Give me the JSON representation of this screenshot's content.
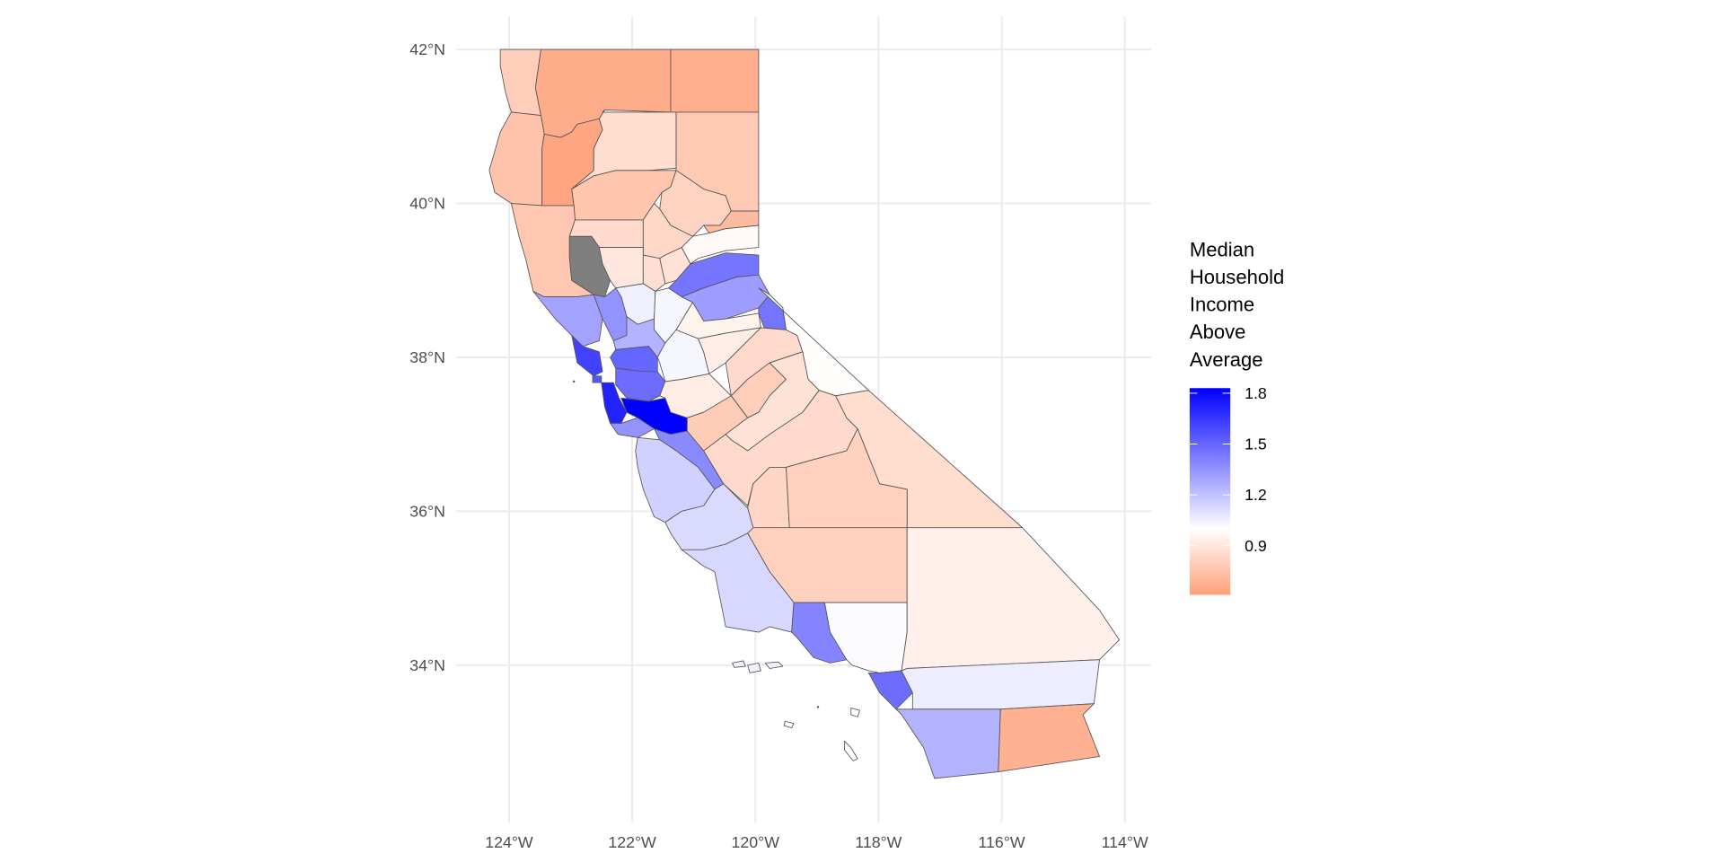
{
  "chart_data": {
    "type": "choropleth",
    "region": "California counties",
    "x_axis": {
      "ticks": [
        "124°W",
        "122°W",
        "120°W",
        "118°W",
        "116°W",
        "114°W"
      ],
      "range": [
        -124.8,
        -113.6
      ]
    },
    "y_axis": {
      "ticks": [
        "34°N",
        "36°N",
        "38°N",
        "40°N",
        "42°N"
      ],
      "range": [
        32.3,
        42.4
      ]
    },
    "grid": true,
    "legend": {
      "title_lines": [
        "Median",
        "Household",
        "Income",
        "Above",
        "Average"
      ],
      "ticks": [
        "1.8",
        "1.5",
        "1.2",
        "0.9"
      ],
      "tick_values": [
        1.8,
        1.5,
        1.2,
        0.9
      ],
      "range": [
        0.61,
        1.83
      ],
      "midpoint": 1.0,
      "low_color": "#FFA07A",
      "mid_color": "#FFFFFF",
      "high_color": "#0000FF",
      "na_color": "#7F7F7F",
      "placement": "right"
    },
    "values": [
      0.8,
      0.66,
      0.67,
      0.75,
      0.63,
      0.86,
      0.78,
      0.76,
      0.82,
      0.72,
      0.77,
      0.85,
      null,
      0.84,
      0.88,
      0.98,
      0.9,
      0.87,
      1.45,
      1.05,
      1.3,
      1.35,
      1.03,
      1.32,
      1.45,
      0.95,
      1.25,
      1.62,
      1.5,
      1.03,
      0.93,
      0.85,
      0.99,
      1.48,
      1.55,
      1.72,
      1.83,
      0.92,
      0.8,
      0.79,
      0.88,
      1.35,
      1.38,
      1.15,
      0.85,
      0.86,
      0.83,
      0.81,
      1.12,
      0.81,
      1.13,
      1.4,
      1.01,
      0.94,
      1.48,
      1.06,
      1.25,
      0.68
    ]
  }
}
